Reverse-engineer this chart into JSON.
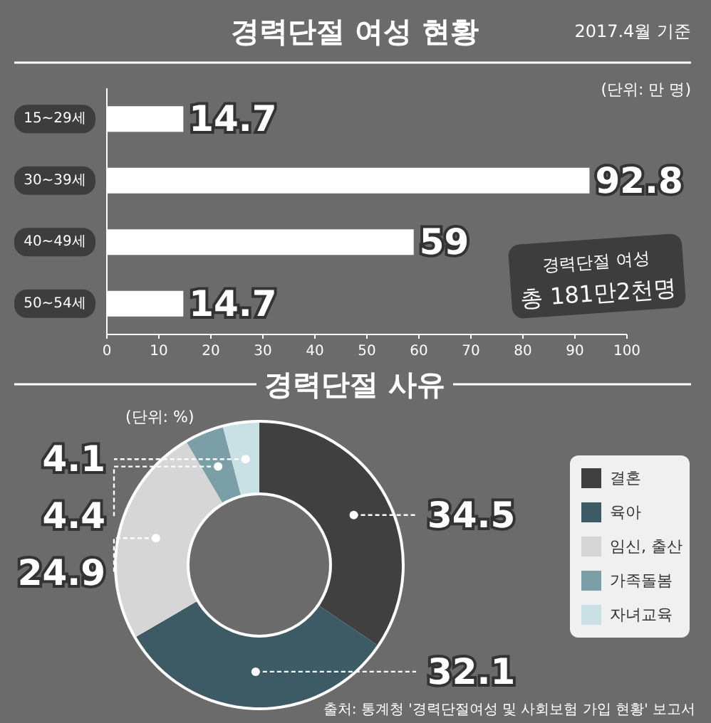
{
  "chart_data": [
    {
      "type": "bar",
      "orientation": "horizontal",
      "title": "경력단절 여성 현황",
      "categories": [
        "15~29세",
        "30~39세",
        "40~49세",
        "50~54세"
      ],
      "series": [
        {
          "color": "#ffffff",
          "values": [
            14.7,
            92.8,
            59,
            14.7
          ]
        }
      ],
      "xlim": [
        0,
        100
      ],
      "xticks": [
        0,
        10,
        20,
        30,
        40,
        50,
        60,
        70,
        80,
        90,
        100
      ],
      "data_labels": true,
      "annotations": [
        "2017.4월 기준",
        "(단위: 만 명)",
        "경력단절 여성\n총 181만2천명"
      ]
    },
    {
      "type": "donut",
      "title": "경력단절 사유",
      "categories": [
        "결혼",
        "육아",
        "임신, 출산",
        "가족돌봄",
        "자녀교육"
      ],
      "values": [
        34.5,
        32.1,
        24.9,
        4.4,
        4.1
      ],
      "colors": [
        "#404040",
        "#3c5b64",
        "#d6d6d6",
        "#7a9fa6",
        "#c9e1e5"
      ],
      "legend": "right",
      "data_labels": true,
      "annotations": [
        "(단위: %)",
        "출처: 통계청 '경력단절여성 및 사회보험 가입 현황' 보고서"
      ]
    }
  ]
}
